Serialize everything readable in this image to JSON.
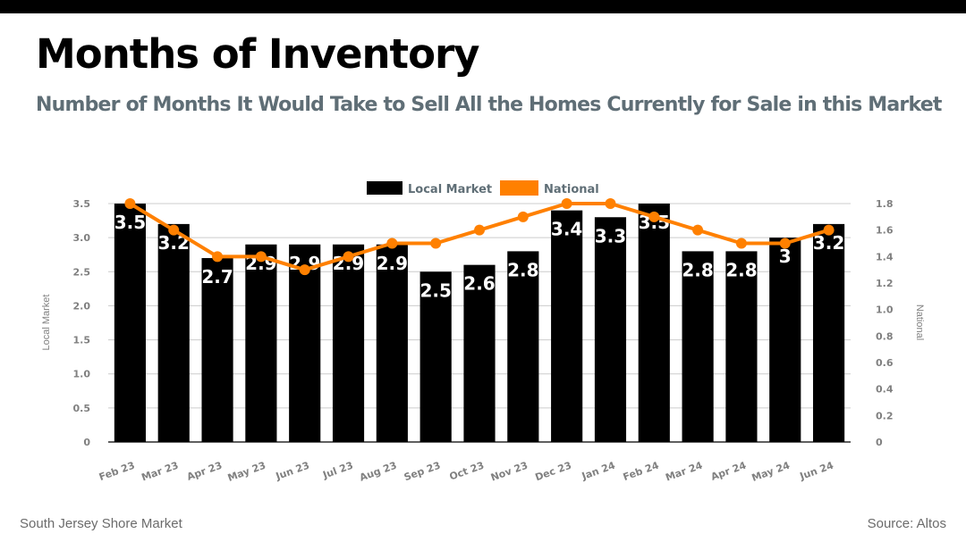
{
  "header": {
    "title": "Months of Inventory",
    "subtitle": "Number of Months It Would Take to Sell All the Homes Currently for Sale in this Market"
  },
  "footer": {
    "market": "South Jersey Shore Market",
    "source": "Source: Altos"
  },
  "colors": {
    "local": "#000000",
    "national": "#ff8000",
    "grid": "#cccccc"
  },
  "chart_data": {
    "type": "bar",
    "title": "Months of Inventory",
    "categories": [
      "Feb 23",
      "Mar 23",
      "Apr 23",
      "May 23",
      "Jun 23",
      "Jul 23",
      "Aug 23",
      "Sep 23",
      "Oct 23",
      "Nov 23",
      "Dec 23",
      "Jan 24",
      "Feb 24",
      "Mar 24",
      "Apr 24",
      "May 24",
      "Jun 24"
    ],
    "series": [
      {
        "name": "Local Market",
        "type": "bar",
        "axis": "left",
        "values": [
          3.5,
          3.2,
          2.7,
          2.9,
          2.9,
          2.9,
          2.9,
          2.5,
          2.6,
          2.8,
          3.4,
          3.3,
          3.5,
          2.8,
          2.8,
          3,
          3.2
        ],
        "labels": [
          "3.5",
          "3.2",
          "2.7",
          "2.9",
          "2.9",
          "2.9",
          "2.9",
          "2.5",
          "2.6",
          "2.8",
          "3.4",
          "3.3",
          "3.5",
          "2.8",
          "2.8",
          "3",
          "3.2"
        ]
      },
      {
        "name": "National",
        "type": "line",
        "axis": "right",
        "values": [
          1.8,
          1.6,
          1.4,
          1.4,
          1.3,
          1.4,
          1.5,
          1.5,
          1.6,
          1.7,
          1.8,
          1.8,
          1.7,
          1.6,
          1.5,
          1.5,
          1.6
        ]
      }
    ],
    "ylabel": "Local Market",
    "y2label": "National",
    "ylim": [
      0,
      3.5
    ],
    "y2lim": [
      0,
      1.8
    ],
    "yticks": [
      "0",
      "0.5",
      "1.0",
      "1.5",
      "2.0",
      "2.5",
      "3.0",
      "3.5"
    ],
    "y2ticks": [
      "0",
      "0.2",
      "0.4",
      "0.6",
      "0.8",
      "1.0",
      "1.2",
      "1.4",
      "1.6",
      "1.8"
    ],
    "grid": true,
    "legend": {
      "position": "top-center",
      "entries": [
        "Local Market",
        "National"
      ]
    }
  }
}
